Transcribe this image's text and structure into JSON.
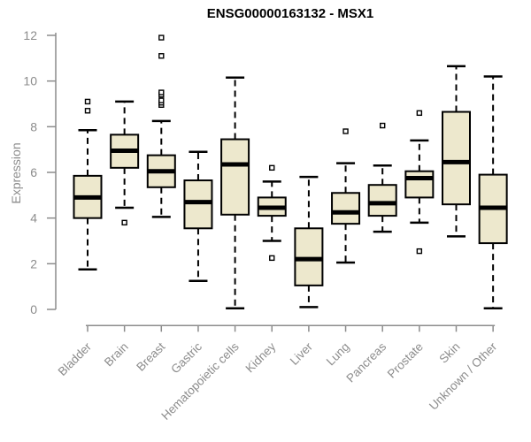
{
  "colors": {
    "background": "#FFFFFF",
    "box_fill": "#EDE8CD",
    "box_border": "#000000",
    "median": "#000000",
    "whisker": "#000000",
    "outlier_fill": "#FFFFFF",
    "axis": "#8C8C8C",
    "tick_label": "#8C8C8C",
    "title": "#000000"
  },
  "chart_data": {
    "type": "boxplot",
    "title": "ENSG00000163132 - MSX1",
    "ylabel": "Expression",
    "xlabel": "",
    "ylim": [
      0,
      12
    ],
    "yticks": [
      0,
      2,
      4,
      6,
      8,
      10,
      12
    ],
    "grid": false,
    "legend": false,
    "whisker_style": "dashed",
    "categories": [
      "Bladder",
      "Brain",
      "Breast",
      "Gastric",
      "Hematopoietic cells",
      "Kidney",
      "Liver",
      "Lung",
      "Pancreas",
      "Prostate",
      "Skin",
      "Unknown / Other"
    ],
    "series": [
      {
        "name": "Bladder",
        "whisker_low": 1.75,
        "q1": 4.0,
        "median": 4.9,
        "q3": 5.85,
        "whisker_high": 7.85,
        "outliers": [
          8.7,
          9.1
        ]
      },
      {
        "name": "Brain",
        "whisker_low": 4.45,
        "q1": 6.2,
        "median": 6.95,
        "q3": 7.65,
        "whisker_high": 9.1,
        "outliers": [
          3.8
        ]
      },
      {
        "name": "Breast",
        "whisker_low": 4.05,
        "q1": 5.35,
        "median": 6.05,
        "q3": 6.75,
        "whisker_high": 8.25,
        "outliers": [
          8.95,
          9.05,
          9.15,
          9.4,
          9.5,
          11.1,
          11.9
        ]
      },
      {
        "name": "Gastric",
        "whisker_low": 1.25,
        "q1": 3.55,
        "median": 4.7,
        "q3": 5.65,
        "whisker_high": 6.9,
        "outliers": []
      },
      {
        "name": "Hematopoietic cells",
        "whisker_low": 0.05,
        "q1": 4.15,
        "median": 6.35,
        "q3": 7.45,
        "whisker_high": 10.15,
        "outliers": []
      },
      {
        "name": "Kidney",
        "whisker_low": 3.0,
        "q1": 4.1,
        "median": 4.45,
        "q3": 4.9,
        "whisker_high": 5.6,
        "outliers": [
          2.25,
          6.2
        ]
      },
      {
        "name": "Liver",
        "whisker_low": 0.1,
        "q1": 1.05,
        "median": 2.2,
        "q3": 3.55,
        "whisker_high": 5.8,
        "outliers": []
      },
      {
        "name": "Lung",
        "whisker_low": 2.05,
        "q1": 3.75,
        "median": 4.25,
        "q3": 5.1,
        "whisker_high": 6.4,
        "outliers": [
          7.8
        ]
      },
      {
        "name": "Pancreas",
        "whisker_low": 3.4,
        "q1": 4.1,
        "median": 4.65,
        "q3": 5.45,
        "whisker_high": 6.3,
        "outliers": [
          8.05
        ]
      },
      {
        "name": "Prostate",
        "whisker_low": 3.8,
        "q1": 4.9,
        "median": 5.75,
        "q3": 6.05,
        "whisker_high": 7.4,
        "outliers": [
          2.55,
          8.6
        ]
      },
      {
        "name": "Skin",
        "whisker_low": 3.2,
        "q1": 4.6,
        "median": 6.45,
        "q3": 8.65,
        "whisker_high": 10.65,
        "outliers": []
      },
      {
        "name": "Unknown / Other",
        "whisker_low": 0.05,
        "q1": 2.9,
        "median": 4.45,
        "q3": 5.9,
        "whisker_high": 10.2,
        "outliers": []
      }
    ]
  }
}
